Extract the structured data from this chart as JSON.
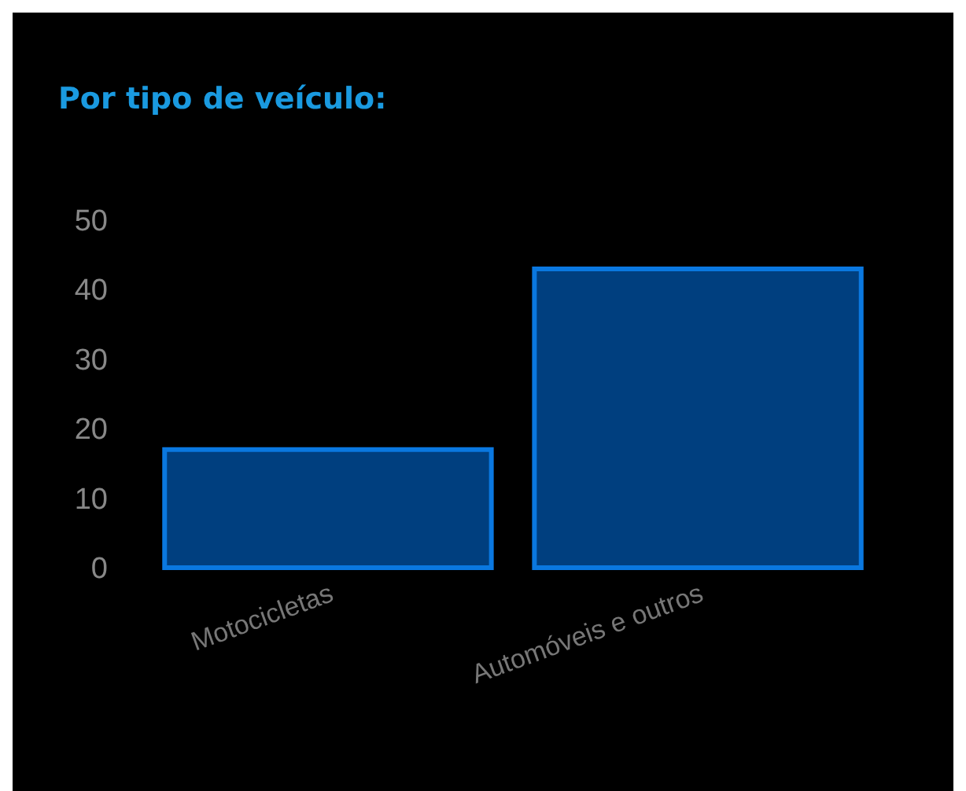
{
  "chart_data": {
    "type": "bar",
    "title": "Por tipo de veículo:",
    "categories": [
      "Motocicletas",
      "Automóveis e outros"
    ],
    "values": [
      17,
      43
    ],
    "color": "#003f7f",
    "ylim": [
      0,
      50
    ],
    "yticks": [
      0,
      10,
      20,
      30,
      40,
      50
    ],
    "grid": false
  }
}
